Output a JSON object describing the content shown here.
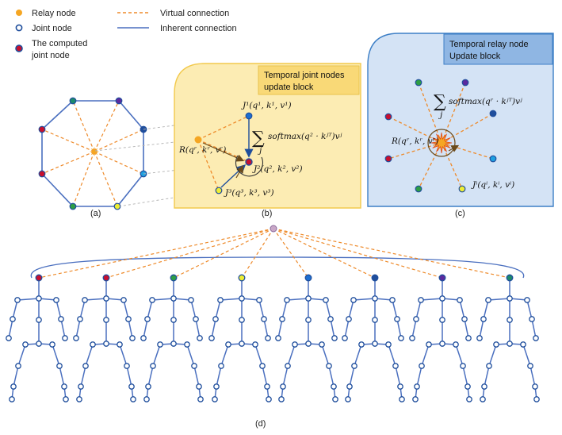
{
  "legend": {
    "relay_node": "Relay node",
    "joint_node": "Joint node",
    "computed_joint_node_line1": "The computed",
    "computed_joint_node_line2": "joint node",
    "virtual_connection": "Virtual connection",
    "inherent_connection": "Inherent connection"
  },
  "panels": {
    "a": {
      "caption": "(a)"
    },
    "b": {
      "caption": "(b)",
      "title_line1": "Temporal joint nodes",
      "title_line2": "update block",
      "j1": "J¹(q¹, k¹, v¹)",
      "j2": "J²(q², k², v²)",
      "j3": "J³(q³, k³, v³)",
      "relay": "R(qʳ, kʳ, vʳ)",
      "sum_symbol": "∑",
      "sum_index": "j",
      "softmax": "softmax(q² · kʲᵀ)vʲ"
    },
    "c": {
      "caption": "(c)",
      "title_line1": "Temporal relay node",
      "title_line2": "Update block",
      "relay": "R(qʳ, kʳ, vʳ)",
      "ji": "Jⁱ(qⁱ, kⁱ, vⁱ)",
      "sum_symbol": "∑",
      "sum_index": "j",
      "softmax": "softmax(qʳ · kʲᵀ)vʲ"
    },
    "d": {
      "caption": "(d)"
    }
  },
  "colors": {
    "relay": "#f5a623",
    "joint_fill": "#ffffff",
    "joint_stroke": "#1f4e9c",
    "edge": "#4a6fbf",
    "virtual": "#ee8a2a",
    "panel_b_bg": "#fcecb3",
    "panel_b_border": "#f2c94c",
    "panel_b_title_bg": "#f9d977",
    "panel_c_bg": "#d4e3f5",
    "panel_c_border": "#3d7fc6",
    "panel_c_title_bg": "#8fb6e3",
    "top_node": "#c9a7c7",
    "node_colors": [
      "#c8102e",
      "#c8102e",
      "#2e9e44",
      "#eeee33",
      "#1e6fd0",
      "#1f4e9c",
      "#5b2a9e",
      "#1e8a6b"
    ]
  }
}
